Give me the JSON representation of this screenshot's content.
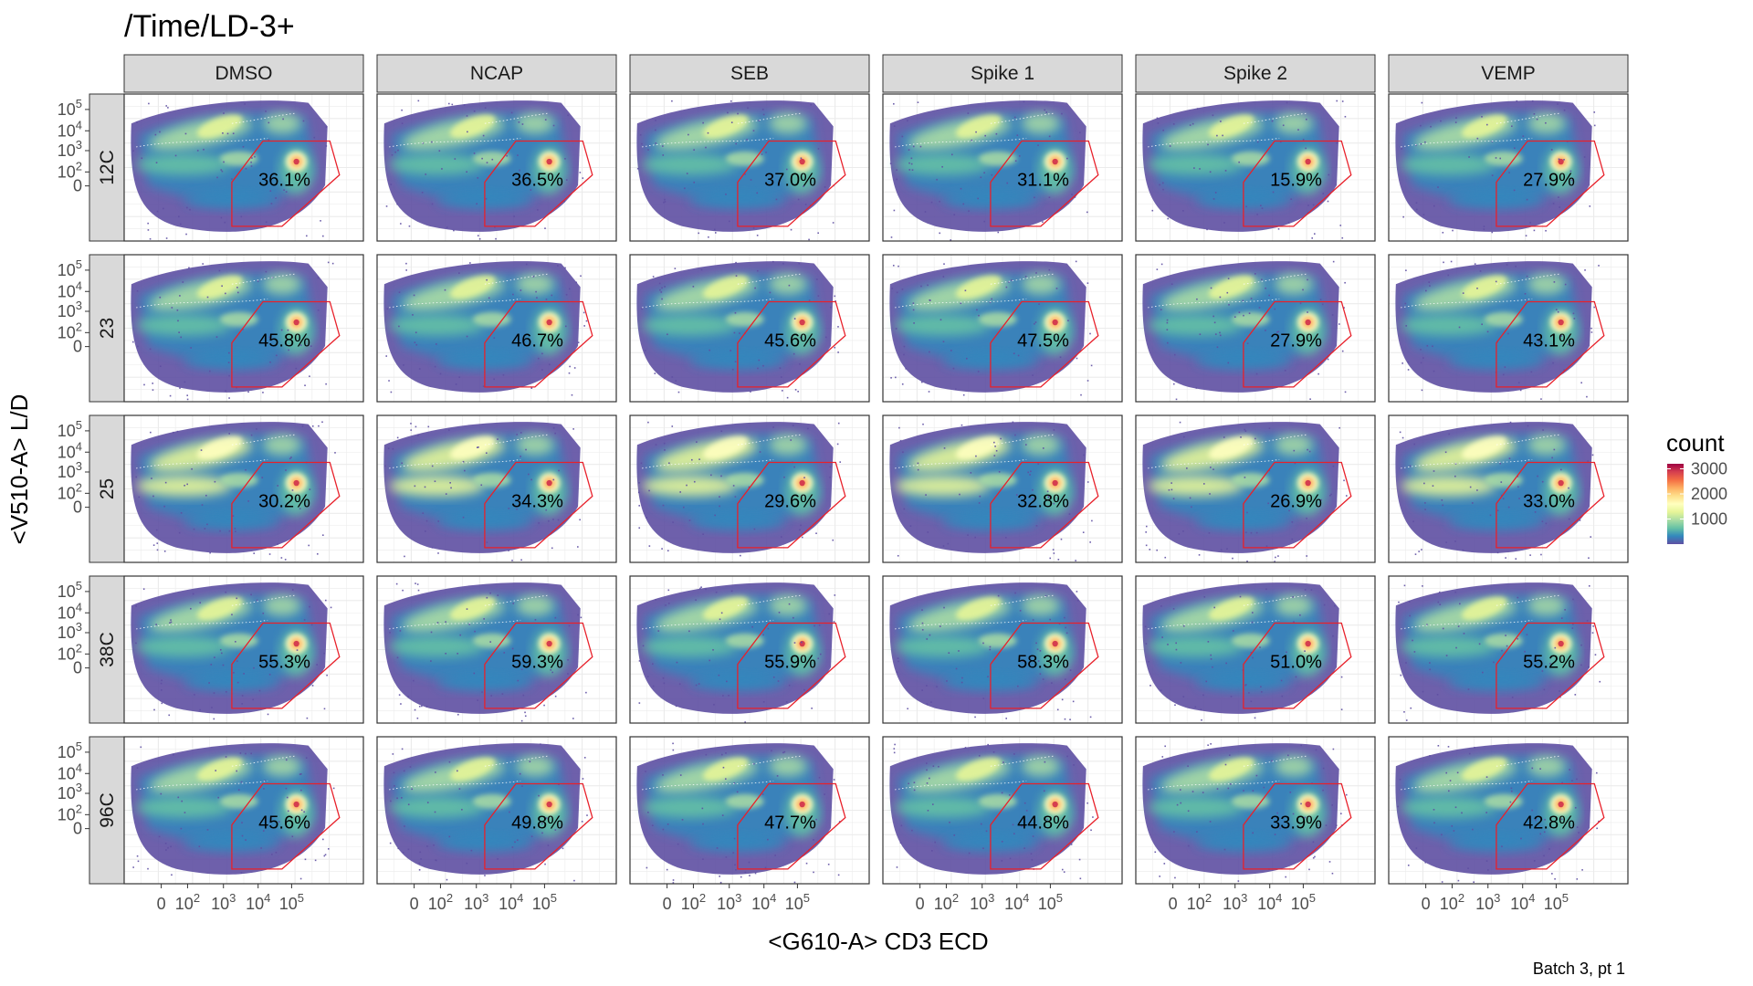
{
  "chart_data": {
    "type": "heatmap",
    "title": "/Time/LD-3+",
    "xlabel": "<G610-A> CD3 ECD",
    "ylabel": "<V510-A> L/D",
    "caption": "Batch 3, pt 1",
    "columns": [
      "DMSO",
      "NCAP",
      "SEB",
      "Spike 1",
      "Spike 2",
      "VEMP"
    ],
    "rows": [
      "12C",
      "23",
      "25",
      "38C",
      "96C"
    ],
    "x_tick_labels": [
      "0",
      "10",
      "10",
      "10",
      "10"
    ],
    "x_tick_exponents": [
      "",
      "2",
      "3",
      "4",
      "5"
    ],
    "y_tick_labels": [
      "0",
      "10",
      "10",
      "10",
      "10"
    ],
    "y_tick_exponents": [
      "",
      "2",
      "3",
      "4",
      "5"
    ],
    "gate_percentages": [
      [
        "36.1%",
        "36.5%",
        "37.0%",
        "31.1%",
        "15.9%",
        "27.9%"
      ],
      [
        "45.8%",
        "46.7%",
        "45.6%",
        "47.5%",
        "27.9%",
        "43.1%"
      ],
      [
        "30.2%",
        "34.3%",
        "29.6%",
        "32.8%",
        "26.9%",
        "33.0%"
      ],
      [
        "55.3%",
        "59.3%",
        "55.9%",
        "58.3%",
        "51.0%",
        "55.2%"
      ],
      [
        "45.6%",
        "49.8%",
        "47.7%",
        "44.8%",
        "33.9%",
        "42.8%"
      ]
    ],
    "legend": {
      "title": "count",
      "ticks": [
        "1000",
        "2000",
        "3000"
      ],
      "range": [
        0,
        3200
      ],
      "colors": [
        "#5e4fa2",
        "#3288bd",
        "#66c2a5",
        "#abdda4",
        "#e6f598",
        "#ffffbf",
        "#fee08b",
        "#fdae61",
        "#f46d43",
        "#d53e4f",
        "#9e0142"
      ]
    },
    "gate_color": "#e8202a",
    "grid": true
  }
}
